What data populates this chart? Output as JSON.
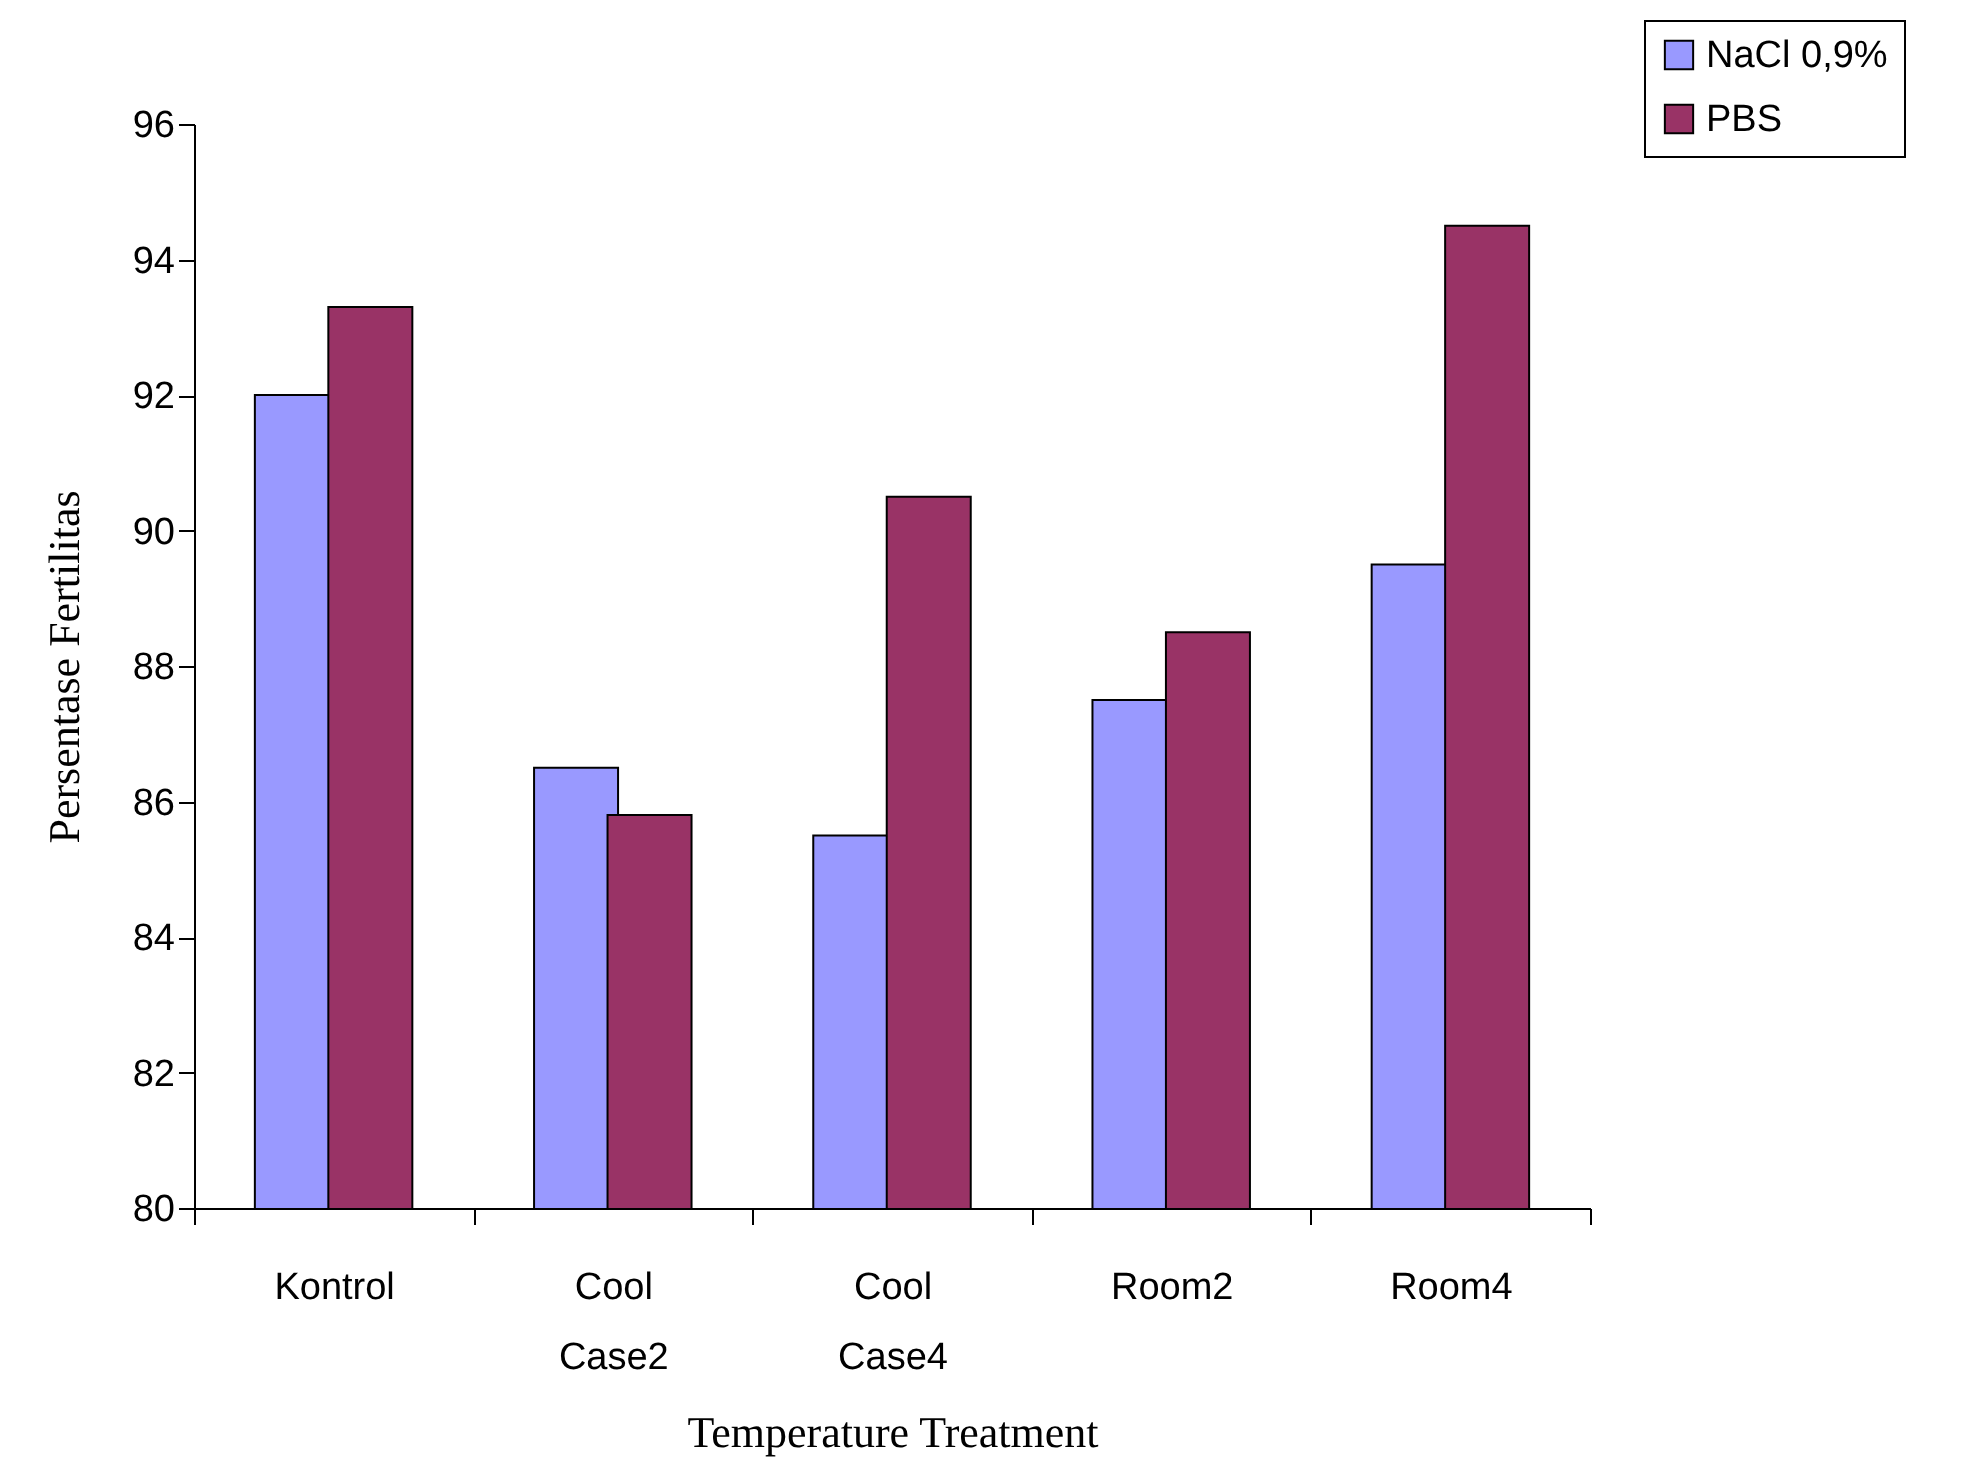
{
  "chart_data": {
    "type": "bar",
    "xlabel": "Temperature Treatment",
    "ylabel": "Persentase Fertilitas",
    "categories": [
      "Kontrol",
      "Cool Case2",
      "Cool Case4",
      "Room2",
      "Room4"
    ],
    "series": [
      {
        "name": "NaCl 0,9%",
        "color": "#9999ff",
        "values": [
          92,
          86.5,
          85.5,
          87.5,
          89.5
        ]
      },
      {
        "name": "PBS",
        "color": "#993366",
        "values": [
          93.3,
          85.8,
          90.5,
          88.5,
          94.5
        ]
      }
    ],
    "ylim": [
      80,
      96
    ],
    "yticks": [
      80,
      82,
      84,
      86,
      88,
      90,
      92,
      94,
      96
    ],
    "grid": false,
    "legend": "top right"
  }
}
